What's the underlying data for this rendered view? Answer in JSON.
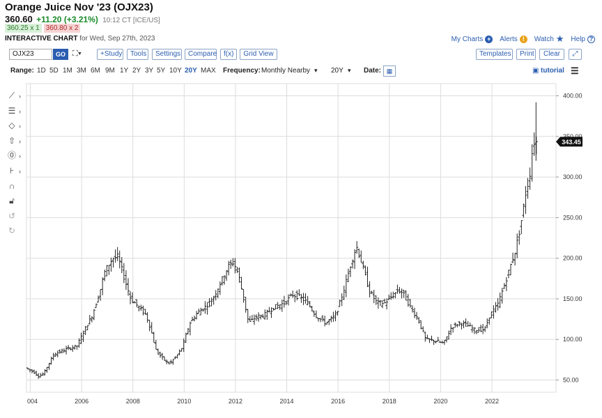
{
  "header": {
    "title": "Orange Juice Nov '23 (OJX23)",
    "last_price": "360.60",
    "change": "+11.20 (+3.21%)",
    "time": "10:12 CT [ICE/US]",
    "bid": "360.25 x 1",
    "ask": "360.80 x 2",
    "chart_label": "INTERACTIVE CHART",
    "chart_date": "for Wed, Sep 27th, 2023"
  },
  "top_links": {
    "my_charts": "My Charts",
    "alerts": "Alerts",
    "watch": "Watch",
    "help": "Help"
  },
  "colors": {
    "link": "#2a5db0",
    "positive": "#1a8a2a",
    "bid_bg": "#d9f0d9",
    "ask_bg": "#f6d4d4",
    "price_tag": "#111111",
    "grid": "#dcdcdc"
  },
  "toolbar": {
    "symbol_value": "OJX23",
    "go_label": "GO",
    "study": "+Study",
    "tools": "Tools",
    "settings": "Settings",
    "compare": "Compare",
    "fx": "f(x)",
    "grid_view": "Grid View",
    "templates": "Templates",
    "print": "Print",
    "clear": "Clear"
  },
  "rangebar": {
    "range_label": "Range:",
    "ranges": [
      "1D",
      "5D",
      "1M",
      "3M",
      "6M",
      "9M",
      "1Y",
      "2Y",
      "3Y",
      "5Y",
      "10Y",
      "20Y",
      "MAX"
    ],
    "active_range": "20Y",
    "frequency_label": "Frequency:",
    "frequency_value": "Monthly Nearby",
    "period_value": "20Y",
    "date_label": "Date:",
    "tutorial": "tutorial"
  },
  "side_tools": [
    "line-tool-icon",
    "fib-tool-icon",
    "shape-tool-icon",
    "arrow-tool-icon",
    "label-tool-icon",
    "measure-tool-icon",
    "magnet-icon",
    "lock-icon",
    "undo-icon",
    "redo-icon"
  ],
  "chart_data": {
    "type": "ohlc",
    "xlim": [
      2003.85,
      2024.5
    ],
    "ylim": [
      35,
      415
    ],
    "x_ticks": [
      "004",
      "2006",
      "2008",
      "2010",
      "2012",
      "2014",
      "2016",
      "2018",
      "2020",
      "2022"
    ],
    "y_ticks": [
      "50.00",
      "100.00",
      "150.00",
      "200.00",
      "250.00",
      "300.00",
      "350.00",
      "400.00"
    ],
    "last_price_tag": "343.45",
    "last_price_value": 343.45,
    "anchors": [
      [
        2003.9,
        65
      ],
      [
        2004.2,
        60
      ],
      [
        2004.4,
        55
      ],
      [
        2004.6,
        58
      ],
      [
        2004.8,
        70
      ],
      [
        2005.0,
        82
      ],
      [
        2005.5,
        88
      ],
      [
        2005.9,
        92
      ],
      [
        2006.2,
        112
      ],
      [
        2006.5,
        130
      ],
      [
        2006.8,
        160
      ],
      [
        2007.0,
        185
      ],
      [
        2007.3,
        200
      ],
      [
        2007.5,
        202
      ],
      [
        2007.8,
        170
      ],
      [
        2008.0,
        150
      ],
      [
        2008.3,
        140
      ],
      [
        2008.6,
        130
      ],
      [
        2008.8,
        110
      ],
      [
        2009.0,
        85
      ],
      [
        2009.3,
        75
      ],
      [
        2009.5,
        70
      ],
      [
        2009.8,
        80
      ],
      [
        2010.0,
        90
      ],
      [
        2010.3,
        120
      ],
      [
        2010.6,
        133
      ],
      [
        2010.9,
        140
      ],
      [
        2011.2,
        150
      ],
      [
        2011.5,
        170
      ],
      [
        2011.8,
        190
      ],
      [
        2012.0,
        195
      ],
      [
        2012.2,
        180
      ],
      [
        2012.4,
        150
      ],
      [
        2012.6,
        120
      ],
      [
        2012.9,
        128
      ],
      [
        2013.2,
        130
      ],
      [
        2013.6,
        140
      ],
      [
        2014.0,
        145
      ],
      [
        2014.3,
        155
      ],
      [
        2014.6,
        152
      ],
      [
        2014.9,
        145
      ],
      [
        2015.2,
        130
      ],
      [
        2015.6,
        120
      ],
      [
        2016.0,
        130
      ],
      [
        2016.3,
        160
      ],
      [
        2016.6,
        195
      ],
      [
        2016.8,
        215
      ],
      [
        2017.0,
        195
      ],
      [
        2017.3,
        160
      ],
      [
        2017.6,
        145
      ],
      [
        2017.9,
        145
      ],
      [
        2018.1,
        150
      ],
      [
        2018.4,
        160
      ],
      [
        2018.6,
        158
      ],
      [
        2018.9,
        140
      ],
      [
        2019.2,
        125
      ],
      [
        2019.5,
        100
      ],
      [
        2019.9,
        98
      ],
      [
        2020.2,
        95
      ],
      [
        2020.5,
        115
      ],
      [
        2020.8,
        120
      ],
      [
        2021.1,
        118
      ],
      [
        2021.4,
        112
      ],
      [
        2021.8,
        112
      ],
      [
        2022.0,
        130
      ],
      [
        2022.3,
        142
      ],
      [
        2022.6,
        170
      ],
      [
        2022.9,
        200
      ],
      [
        2023.0,
        210
      ],
      [
        2023.2,
        240
      ],
      [
        2023.4,
        280
      ],
      [
        2023.55,
        300
      ],
      [
        2023.7,
        345
      ],
      [
        2023.75,
        343
      ]
    ]
  }
}
